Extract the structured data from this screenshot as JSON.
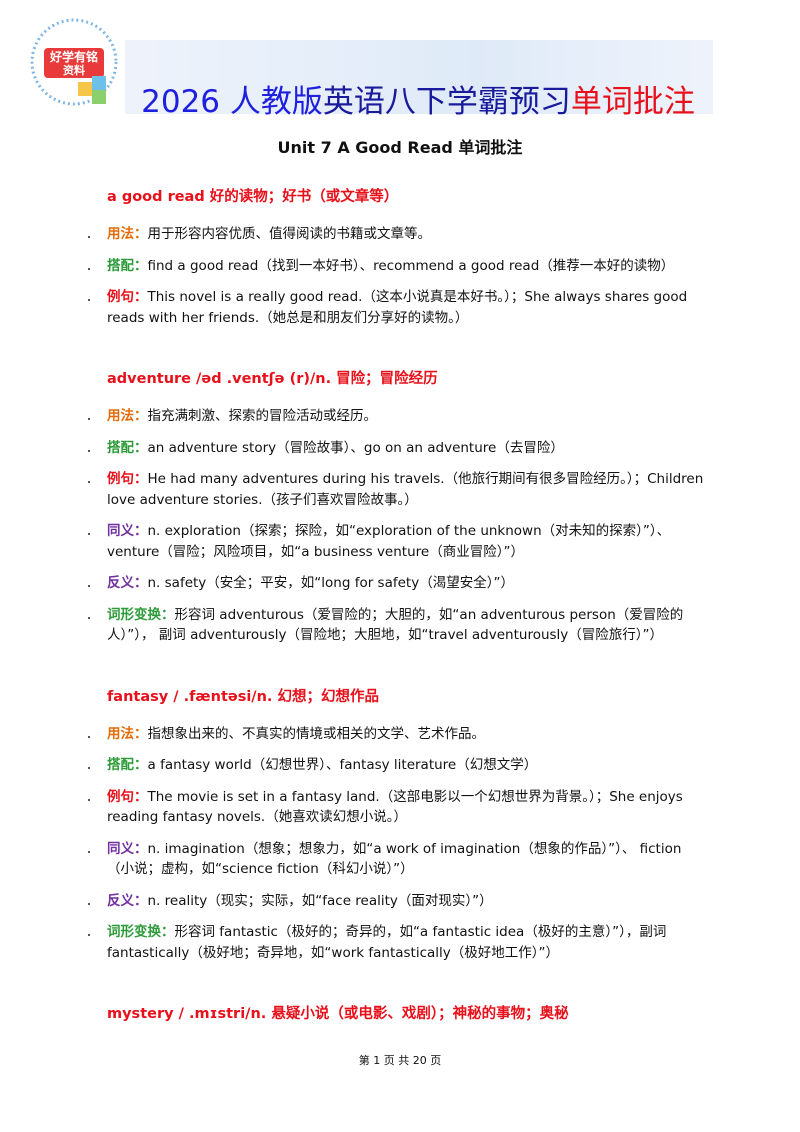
{
  "header": {
    "logo": [
      "好学有铭",
      "资料"
    ],
    "title": [
      {
        "text": "2026 人教版",
        "color": "#1f1fe0"
      },
      {
        "text": "英语八下学霸预习",
        "color": "#1a1a9c"
      },
      {
        "text": "单词批注",
        "color": "#e8101a"
      }
    ],
    "subtitle": "Unit 7 A Good Read  单词批注"
  },
  "entries": [
    {
      "headword": "a good read  好的读物；好书（或文章等）",
      "items": [
        {
          "label": "用法：",
          "label_color": "#e36c09",
          "text": "用于形容内容优质、值得阅读的书籍或文章等。"
        },
        {
          "label": "搭配：",
          "label_color": "#2e9b3a",
          "text": "find a good read（找到一本好书）、recommend a good read（推荐一本好的读物）"
        },
        {
          "label": "例句：",
          "label_color": "#e8101a",
          "text": "This novel is a really good read.（这本小说真是本好书。）；She always shares good reads with her friends.（她总是和朋友们分享好的读物。）"
        }
      ]
    },
    {
      "headword": "adventure /əd .ventʃə (r)/n.  冒险；冒险经历",
      "items": [
        {
          "label": "用法：",
          "label_color": "#e36c09",
          "text": "指充满刺激、探索的冒险活动或经历。"
        },
        {
          "label": "搭配：",
          "label_color": "#2e9b3a",
          "text": "an adventure story（冒险故事）、go on an adventure（去冒险）"
        },
        {
          "label": "例句：",
          "label_color": "#e8101a",
          "text": "He had many adventures during his travels.（他旅行期间有很多冒险经历。）；Children love adventure stories.（孩子们喜欢冒险故事。）"
        },
        {
          "label": "同义：",
          "label_color": "#7030a0",
          "text": "n. exploration（探索；探险，如“exploration of the unknown（对未知的探索）”）、 venture（冒险；风险项目，如“a business venture（商业冒险）”）"
        },
        {
          "label": "反义：",
          "label_color": "#7030a0",
          "text": "n. safety（安全；平安，如“long for safety（渴望安全）”）"
        },
        {
          "label": "词形变换：",
          "label_color": "#2e9b3a",
          "text": "形容词 adventurous（爱冒险的；大胆的，如“an adventurous person（爱冒险的人）”）， 副词 adventurously（冒险地；大胆地，如“travel adventurously（冒险旅行）”）"
        }
      ]
    },
    {
      "headword": "fantasy / .fæntəsi/n.  幻想；幻想作品",
      "items": [
        {
          "label": "用法：",
          "label_color": "#e36c09",
          "text": "指想象出来的、不真实的情境或相关的文学、艺术作品。"
        },
        {
          "label": "搭配：",
          "label_color": "#2e9b3a",
          "text": "a fantasy world（幻想世界）、fantasy literature（幻想文学）"
        },
        {
          "label": "例句：",
          "label_color": "#e8101a",
          "text": "The movie is set in a fantasy land.（这部电影以一个幻想世界为背景。）；She enjoys reading fantasy novels.（她喜欢读幻想小说。）"
        },
        {
          "label": "同义：",
          "label_color": "#7030a0",
          "text": "n. imagination（想象；想象力，如“a work of imagination（想象的作品）”）、 fiction （小说；虚构，如“science fiction（科幻小说）”）"
        },
        {
          "label": "反义：",
          "label_color": "#7030a0",
          "text": "n. reality（现实；实际，如“face reality（面对现实）”）"
        },
        {
          "label": "词形变换：",
          "label_color": "#2e9b3a",
          "text": "形容词 fantastic（极好的；奇异的，如“a fantastic idea（极好的主意）”），副词 fantastically（极好地；奇异地，如“work fantastically（极好地工作）”）"
        }
      ]
    },
    {
      "headword": "mystery / .mɪstri/n.  悬疑小说（或电影、戏剧）；神秘的事物；奥秘",
      "items": []
    }
  ],
  "footer": "第 1 页 共 20 页"
}
